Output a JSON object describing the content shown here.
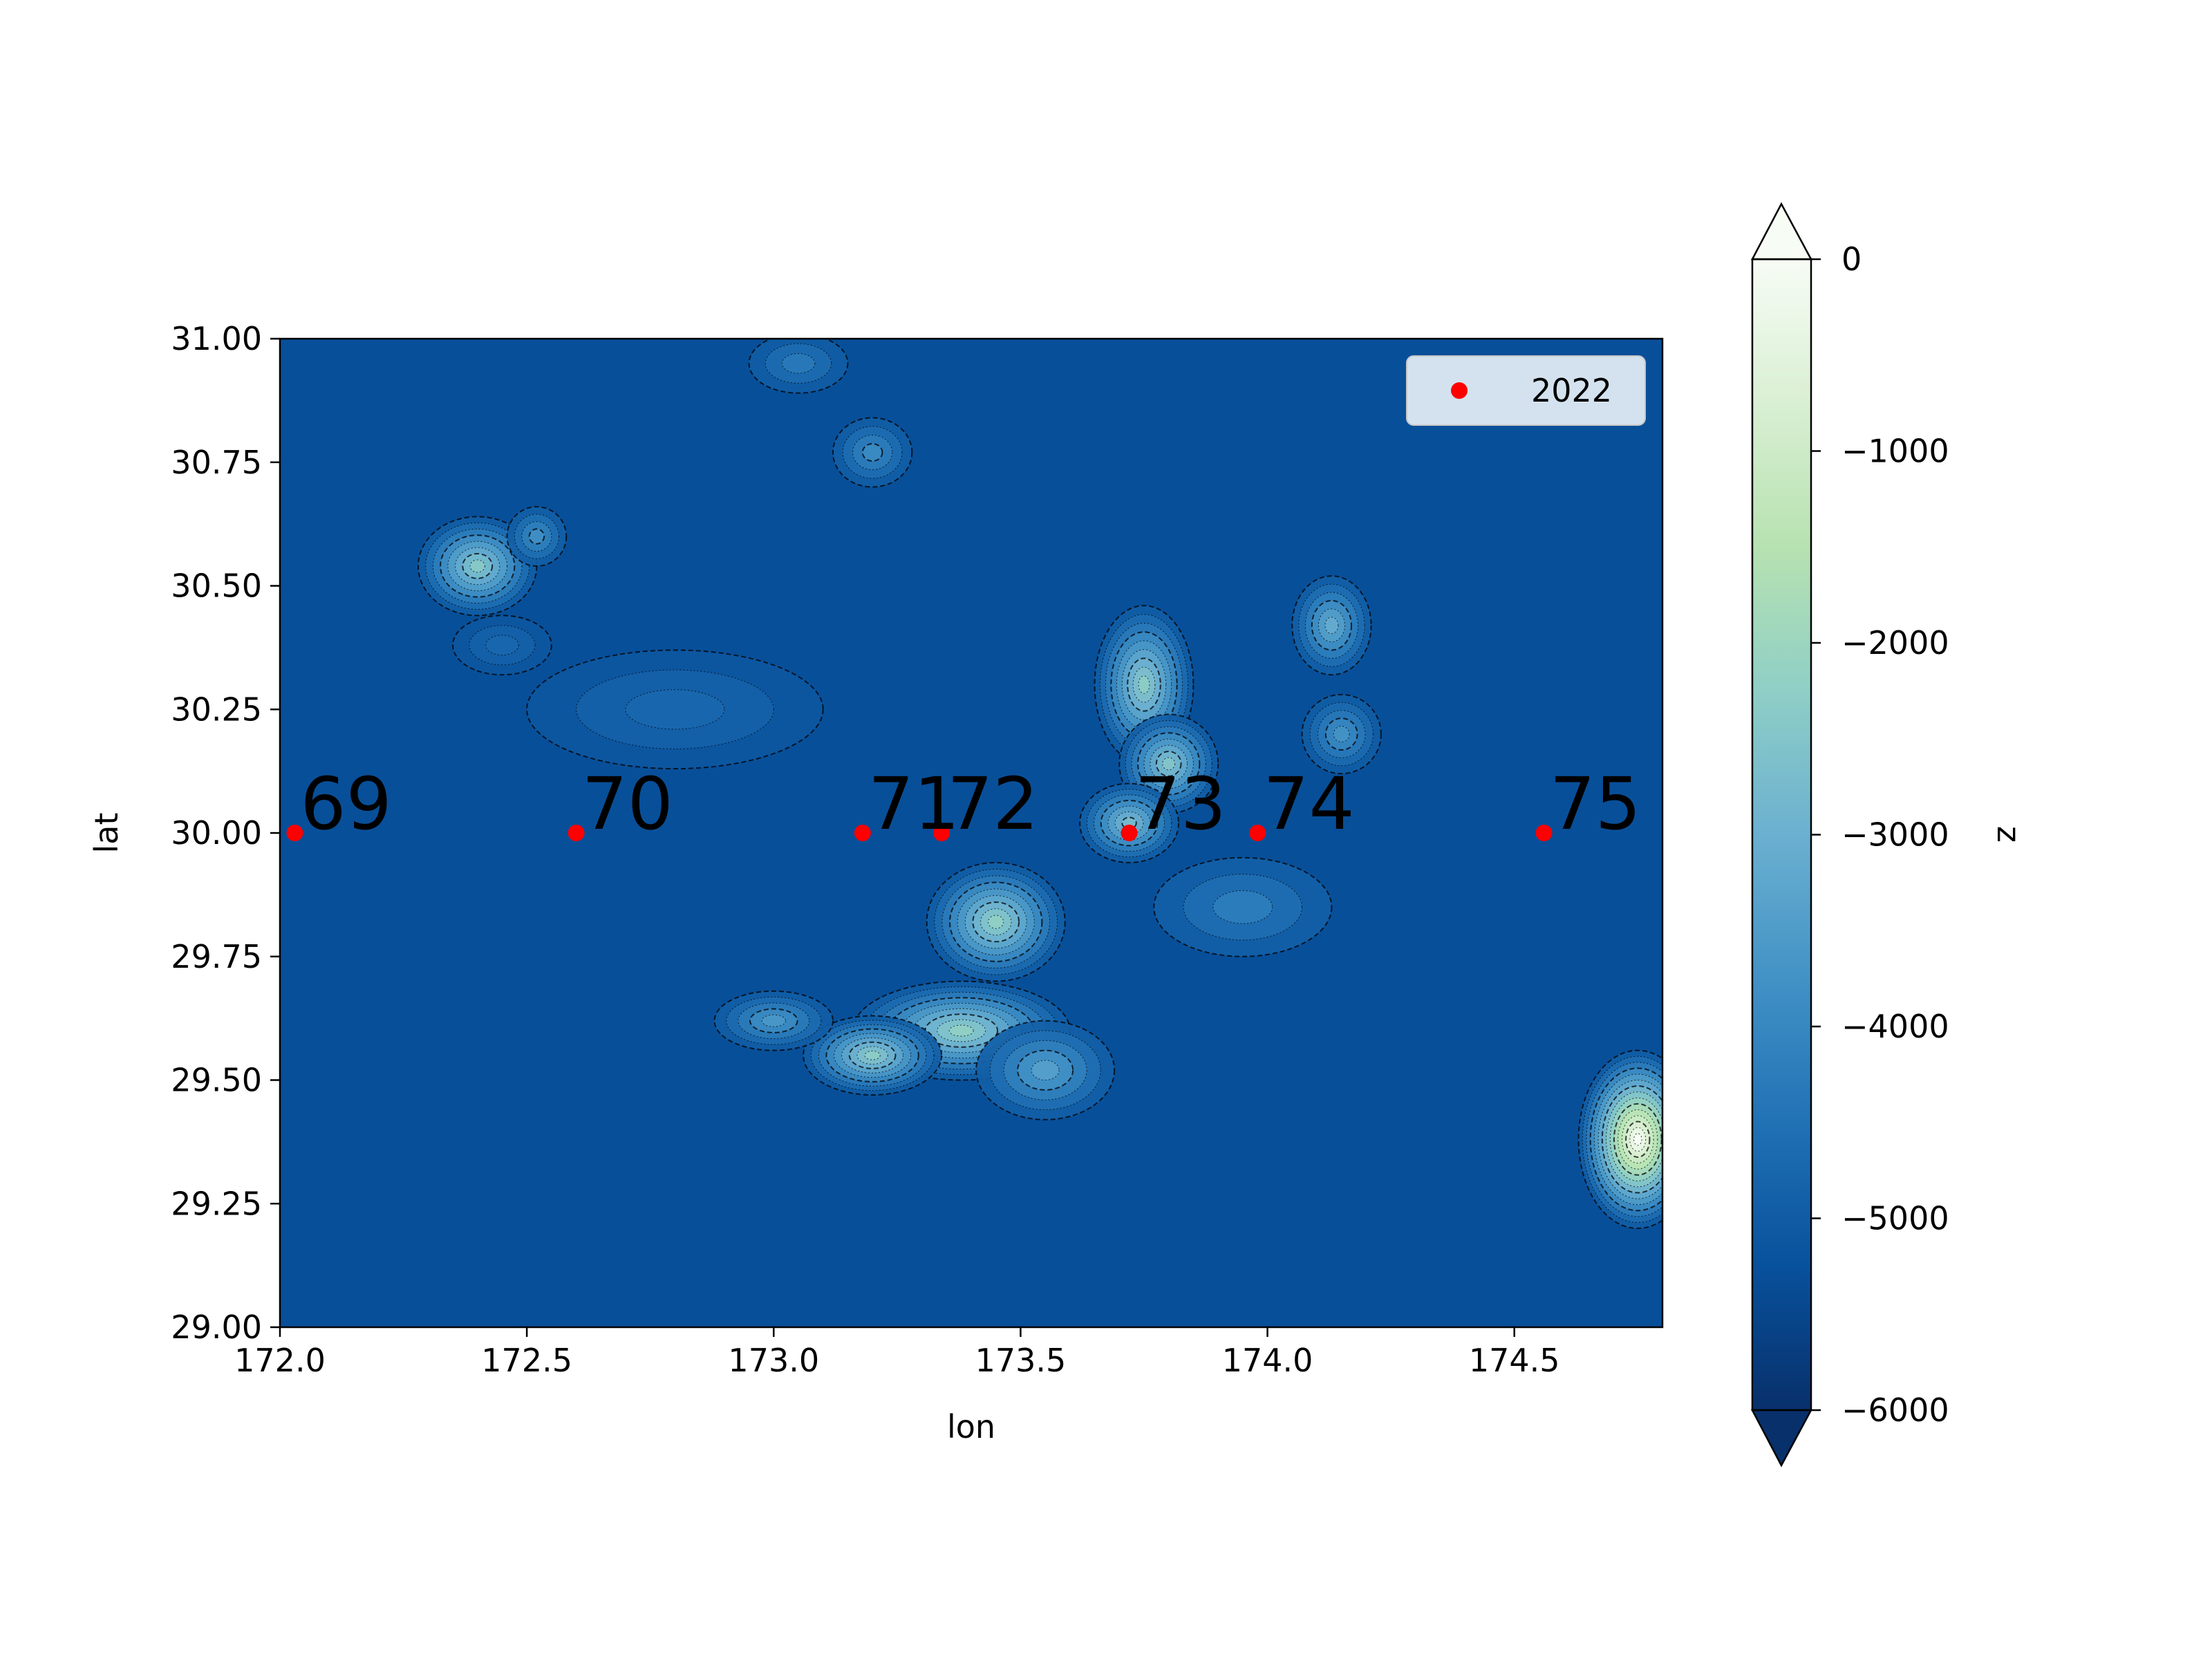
{
  "colors": {
    "background": "#ffffff",
    "marker": "#ff0000",
    "legend_bg": "#d4e2ef",
    "colormap": [
      "#08306b",
      "#08519c",
      "#2171b5",
      "#4292c6",
      "#6bb0d0",
      "#8fcfc6",
      "#b7e2b1",
      "#d9efd3",
      "#f7fcf5"
    ],
    "contour": "#000000"
  },
  "chart_data": {
    "type": "scatter",
    "plot_kind": "bathymetry contour map (filled contours of z) with scatter markers",
    "xlabel": "lon",
    "ylabel": "lat",
    "xlim": [
      172.0,
      174.8
    ],
    "ylim": [
      29.0,
      31.0
    ],
    "xticks": [
      172.0,
      172.5,
      173.0,
      173.5,
      174.0,
      174.5
    ],
    "xtick_labels": [
      "172.0",
      "172.5",
      "173.0",
      "173.5",
      "174.0",
      "174.5"
    ],
    "yticks": [
      29.0,
      29.25,
      29.5,
      29.75,
      30.0,
      30.25,
      30.5,
      30.75,
      31.0
    ],
    "ytick_labels": [
      "29.00",
      "29.25",
      "29.50",
      "29.75",
      "30.00",
      "30.25",
      "30.50",
      "30.75",
      "31.00"
    ],
    "legend": {
      "entries": [
        "2022"
      ],
      "placement": "upper-right"
    },
    "series": [
      {
        "name": "2022",
        "x": [
          172.03,
          172.6,
          173.18,
          173.34,
          173.72,
          173.98,
          174.56
        ],
        "y": [
          30.0,
          30.0,
          30.0,
          30.0,
          30.0,
          30.0,
          30.0
        ],
        "labels": [
          "69",
          "70",
          "71",
          "72",
          "73",
          "74",
          "75"
        ]
      }
    ],
    "colorbar": {
      "label": "z",
      "range": [
        -6000,
        0
      ],
      "extend": "both",
      "ticks": [
        0,
        -1000,
        -2000,
        -3000,
        -4000,
        -5000,
        -6000
      ],
      "tick_labels": [
        "0",
        "−1000",
        "−2000",
        "−3000",
        "−4000",
        "−5000",
        "−6000"
      ]
    },
    "features": [
      {
        "lon": 172.4,
        "lat": 30.54,
        "depth": -2400,
        "rx": 0.12,
        "ry": 0.1
      },
      {
        "lon": 173.75,
        "lat": 30.3,
        "depth": -2300,
        "rx": 0.1,
        "ry": 0.16
      },
      {
        "lon": 173.8,
        "lat": 30.14,
        "depth": -2500,
        "rx": 0.1,
        "ry": 0.1
      },
      {
        "lon": 173.72,
        "lat": 30.02,
        "depth": -2700,
        "rx": 0.1,
        "ry": 0.08
      },
      {
        "lon": 173.45,
        "lat": 29.82,
        "depth": -2200,
        "rx": 0.14,
        "ry": 0.12
      },
      {
        "lon": 173.38,
        "lat": 29.6,
        "depth": -2200,
        "rx": 0.22,
        "ry": 0.1
      },
      {
        "lon": 173.2,
        "lat": 29.55,
        "depth": -2300,
        "rx": 0.14,
        "ry": 0.08
      },
      {
        "lon": 173.0,
        "lat": 29.62,
        "depth": -3600,
        "rx": 0.12,
        "ry": 0.06
      },
      {
        "lon": 173.55,
        "lat": 29.52,
        "depth": -3400,
        "rx": 0.14,
        "ry": 0.1
      },
      {
        "lon": 174.13,
        "lat": 30.42,
        "depth": -3100,
        "rx": 0.08,
        "ry": 0.1
      },
      {
        "lon": 174.15,
        "lat": 30.2,
        "depth": -3700,
        "rx": 0.08,
        "ry": 0.08
      },
      {
        "lon": 174.75,
        "lat": 29.38,
        "depth": 0,
        "rx": 0.12,
        "ry": 0.18
      },
      {
        "lon": 172.52,
        "lat": 30.6,
        "depth": -3800,
        "rx": 0.06,
        "ry": 0.06
      },
      {
        "lon": 173.95,
        "lat": 29.85,
        "depth": -4200,
        "rx": 0.18,
        "ry": 0.1
      },
      {
        "lon": 173.2,
        "lat": 30.77,
        "depth": -3900,
        "rx": 0.08,
        "ry": 0.07
      },
      {
        "lon": 173.05,
        "lat": 30.95,
        "depth": -4300,
        "rx": 0.1,
        "ry": 0.06
      },
      {
        "lon": 172.45,
        "lat": 30.38,
        "depth": -4700,
        "rx": 0.1,
        "ry": 0.06
      },
      {
        "lon": 172.8,
        "lat": 30.25,
        "depth": -4700,
        "rx": 0.3,
        "ry": 0.12
      }
    ]
  }
}
